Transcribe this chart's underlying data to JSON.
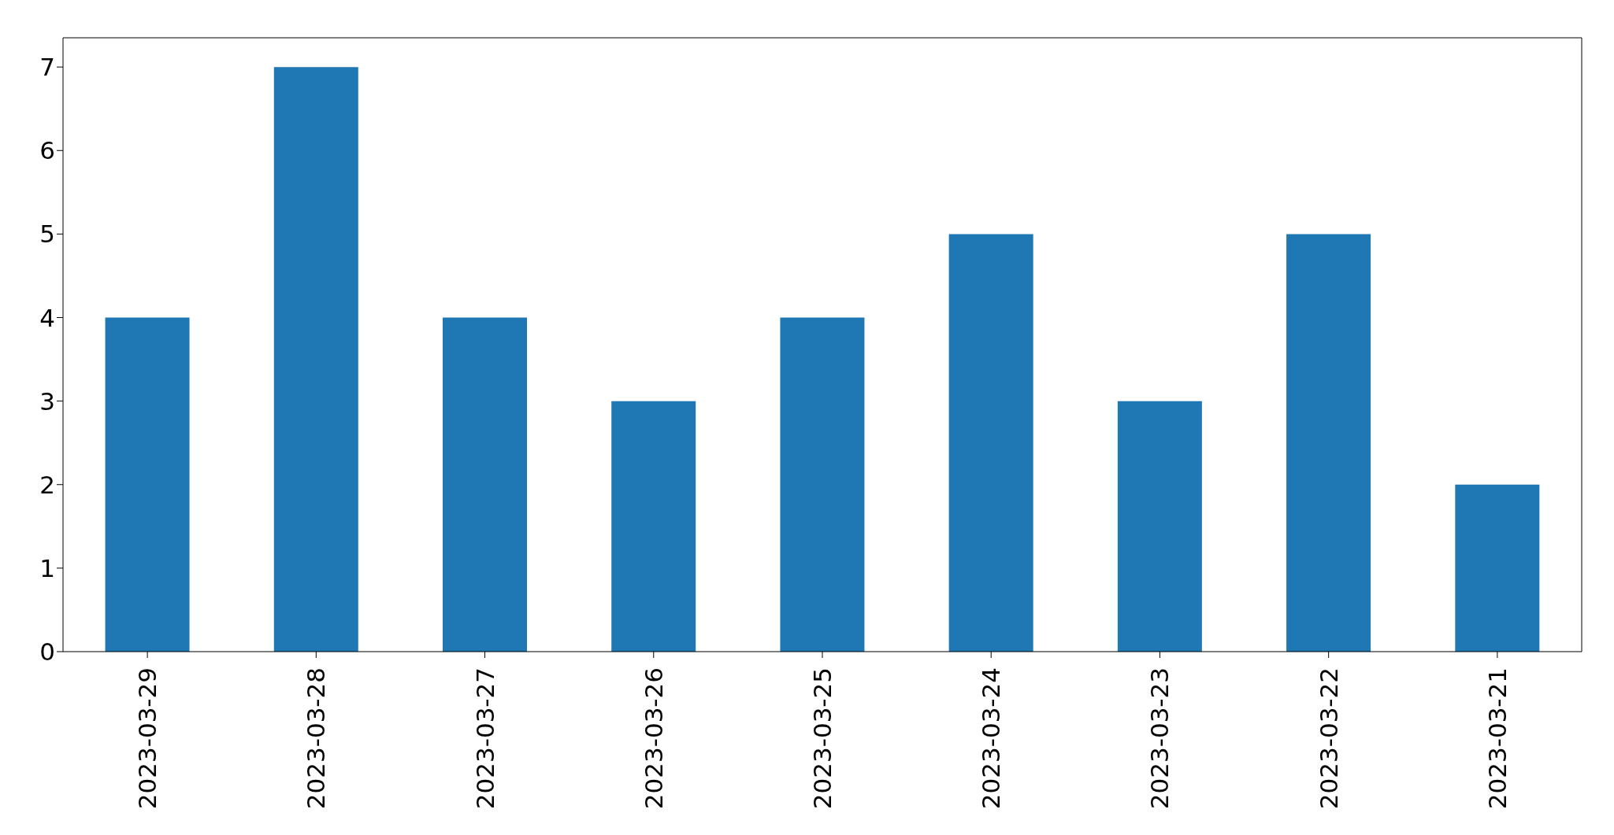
{
  "chart_data": {
    "type": "bar",
    "categories": [
      "2023-03-29",
      "2023-03-28",
      "2023-03-27",
      "2023-03-26",
      "2023-03-25",
      "2023-03-24",
      "2023-03-23",
      "2023-03-22",
      "2023-03-21"
    ],
    "values": [
      4,
      7,
      4,
      3,
      4,
      5,
      3,
      5,
      2
    ],
    "color": "#1f77b4",
    "ylim": [
      0,
      7.35
    ],
    "yticks": [
      0,
      1,
      2,
      3,
      4,
      5,
      6,
      7
    ],
    "grid": false
  }
}
